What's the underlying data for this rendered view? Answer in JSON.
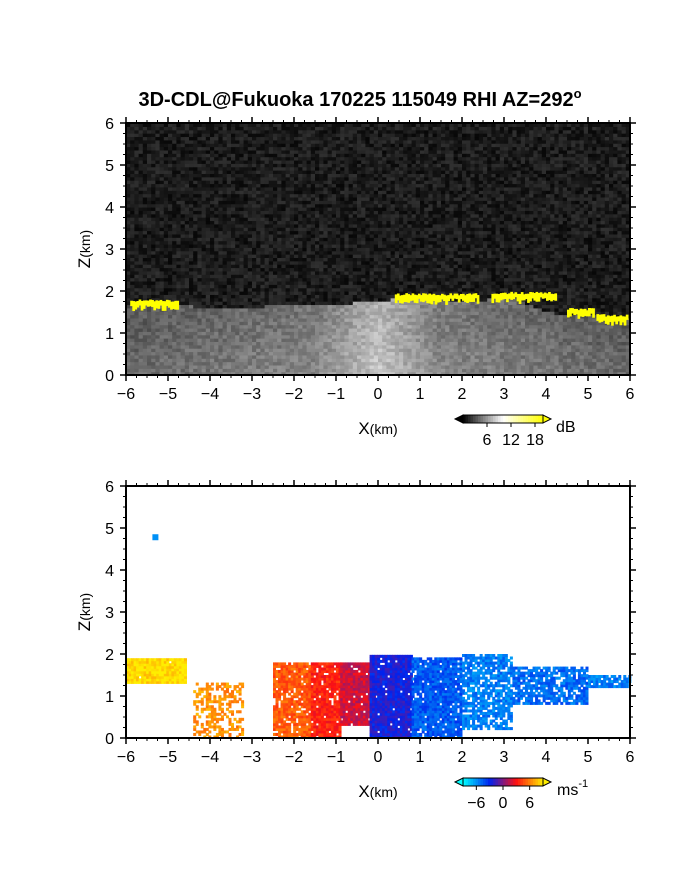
{
  "figure": {
    "title_main": "3D-CDL@Fukuoka 170225 115049 RHI AZ=292",
    "title_suffix": "o"
  },
  "chart_data": [
    {
      "type": "heatmap",
      "name": "reflectivity-panel",
      "xlabel_main": "X",
      "xlabel_unit": "(km)",
      "ylabel_main": "Z",
      "ylabel_unit": "(km)",
      "xlim": [
        -6,
        6
      ],
      "ylim": [
        0,
        6
      ],
      "xticks": [
        "-6",
        "-5",
        "-4",
        "-3",
        "-2",
        "-1",
        "0",
        "1",
        "2",
        "3",
        "4",
        "5",
        "6"
      ],
      "yticks": [
        "0",
        "1",
        "2",
        "3",
        "4",
        "5",
        "6"
      ],
      "colorbar": {
        "unit": "dB",
        "ticks": [
          "6",
          "12",
          "18"
        ],
        "tick_values": [
          6,
          12,
          18
        ],
        "range": [
          0,
          20
        ],
        "colors": [
          "#000000",
          "#ffffff",
          "#ffff00"
        ]
      },
      "background_level_db": 2,
      "features": {
        "cloud_top_profile_x": [
          -6,
          -5,
          -4.5,
          -4,
          -3,
          -2,
          -1,
          0,
          0.5,
          1,
          2,
          2.5,
          3,
          3.5,
          4,
          4.5,
          5,
          5.5,
          6
        ],
        "cloud_top_profile_z": [
          1.7,
          1.75,
          1.65,
          1.6,
          1.62,
          1.7,
          1.7,
          1.75,
          1.85,
          1.9,
          1.75,
          1.75,
          1.95,
          1.7,
          1.5,
          1.45,
          1.45,
          1.35,
          1.35
        ],
        "yellow_segments": [
          {
            "x": [
              -5.9,
              -4.8
            ],
            "z_top": 1.8
          },
          {
            "x": [
              0.4,
              2.4
            ],
            "z_top": 1.95
          },
          {
            "x": [
              2.7,
              4.2
            ],
            "z_top": 1.98
          },
          {
            "x": [
              4.5,
              5.1
            ],
            "z_top": 1.6
          },
          {
            "x": [
              5.2,
              5.9
            ],
            "z_top": 1.45
          }
        ]
      }
    },
    {
      "type": "heatmap",
      "name": "velocity-panel",
      "xlabel_main": "X",
      "xlabel_unit": "(km)",
      "ylabel_main": "Z",
      "ylabel_unit": "(km)",
      "xlim": [
        -6,
        6
      ],
      "ylim": [
        0,
        6
      ],
      "xticks": [
        "-6",
        "-5",
        "-4",
        "-3",
        "-2",
        "-1",
        "0",
        "1",
        "2",
        "3",
        "4",
        "5",
        "6"
      ],
      "yticks": [
        "0",
        "1",
        "2",
        "3",
        "4",
        "5",
        "6"
      ],
      "colorbar": {
        "unit_main": "ms",
        "unit_exp": "-1",
        "ticks": [
          "−6",
          "0",
          "6"
        ],
        "tick_values": [
          -6,
          0,
          6
        ],
        "range": [
          -9,
          9
        ],
        "colors": [
          "#00ffff",
          "#0022ee",
          "#ff1111",
          "#ffee00"
        ]
      },
      "isolated_echo": {
        "x": -5.3,
        "z": 4.78,
        "velocity": -6
      },
      "regions": [
        {
          "x": [
            -6.0,
            -4.6
          ],
          "z": [
            1.3,
            1.85
          ],
          "velocity": 8.5,
          "density": 0.95
        },
        {
          "x": [
            -4.4,
            -3.2
          ],
          "z": [
            0.0,
            1.3
          ],
          "velocity": 6.5,
          "density": 0.45
        },
        {
          "x": [
            -2.5,
            -1.6
          ],
          "z": [
            0.0,
            1.8
          ],
          "velocity": 5.0,
          "density": 0.85
        },
        {
          "x": [
            -1.6,
            -0.9
          ],
          "z": [
            0.0,
            1.8
          ],
          "velocity": 3.5,
          "density": 0.9
        },
        {
          "x": [
            -0.9,
            -0.1
          ],
          "z": [
            0.3,
            1.8
          ],
          "velocity": 1.8,
          "density": 0.95
        },
        {
          "x": [
            -0.2,
            0.8
          ],
          "z": [
            0.0,
            1.95
          ],
          "velocity": -2.5,
          "density": 0.95
        },
        {
          "x": [
            0.8,
            2.0
          ],
          "z": [
            0.0,
            1.9
          ],
          "velocity": -4.5,
          "density": 0.9
        },
        {
          "x": [
            2.0,
            3.2
          ],
          "z": [
            0.2,
            1.95
          ],
          "velocity": -5.5,
          "density": 0.75
        },
        {
          "x": [
            3.2,
            5.0
          ],
          "z": [
            0.8,
            1.65
          ],
          "velocity": -5.0,
          "density": 0.75
        },
        {
          "x": [
            5.0,
            6.0
          ],
          "z": [
            1.2,
            1.5
          ],
          "velocity": -5.5,
          "density": 0.8
        }
      ]
    }
  ]
}
